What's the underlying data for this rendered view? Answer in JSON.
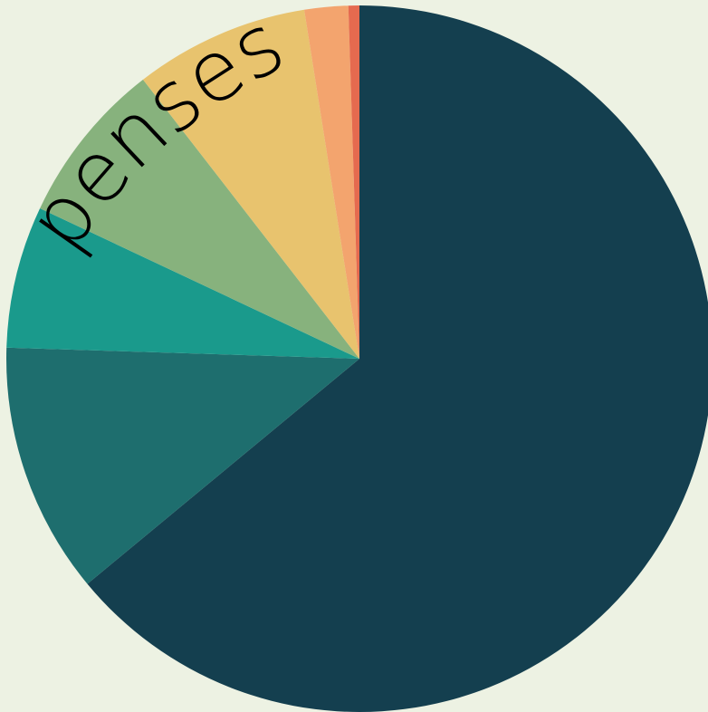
{
  "chart_data": {
    "type": "pie",
    "title_visible_fragment": "penses",
    "slices": [
      {
        "value": 64.0,
        "color": "#143f4f"
      },
      {
        "value": 11.5,
        "color": "#1e6e6e"
      },
      {
        "value": 6.5,
        "color": "#1a9a8c"
      },
      {
        "value": 7.5,
        "color": "#87b27d"
      },
      {
        "value": 8.0,
        "color": "#e8c36e"
      },
      {
        "value": 2.0,
        "color": "#f3a46e"
      },
      {
        "value": 0.5,
        "color": "#e56a4f"
      }
    ],
    "start_angle": "12 o'clock",
    "direction": "clockwise",
    "legend": "none",
    "data_labels": "none"
  }
}
